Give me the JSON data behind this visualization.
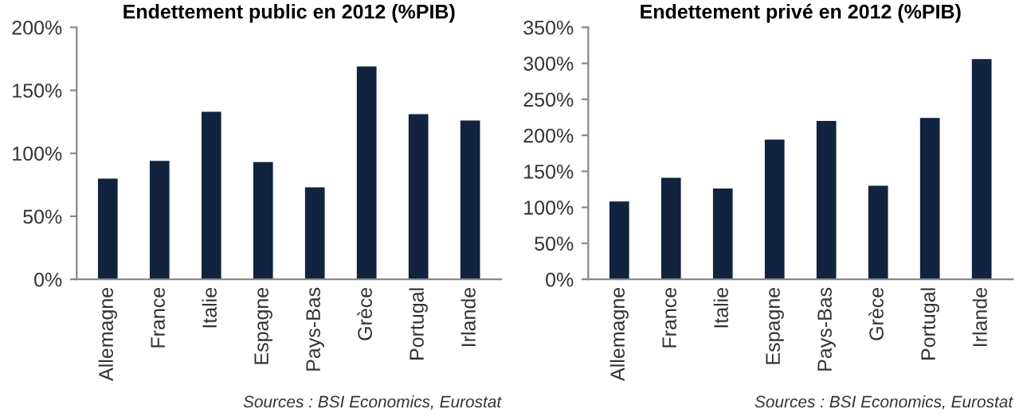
{
  "chart_data": [
    {
      "type": "bar",
      "title": "Endettement public en 2012 (%PIB)",
      "categories": [
        "Allemagne",
        "France",
        "Italie",
        "Espagne",
        "Pays-Bas",
        "Grèce",
        "Portugal",
        "Irlande"
      ],
      "series": [
        {
          "color": "#12233f",
          "values": [
            80,
            94,
            133,
            93,
            73,
            169,
            131,
            126
          ]
        }
      ],
      "ylim": [
        0,
        200
      ],
      "yticks": [
        {
          "value": 0,
          "label": "0%"
        },
        {
          "value": 50,
          "label": "50%"
        },
        {
          "value": 100,
          "label": "100%"
        },
        {
          "value": 150,
          "label": "150%"
        },
        {
          "value": 200,
          "label": "200%"
        }
      ],
      "grid": false,
      "legend": false,
      "annotations": [
        "Sources : BSI Economics, Eurostat"
      ]
    },
    {
      "type": "bar",
      "title": "Endettement privé en 2012 (%PIB)",
      "categories": [
        "Allemagne",
        "France",
        "Italie",
        "Espagne",
        "Pays-Bas",
        "Grèce",
        "Portugal",
        "Irlande"
      ],
      "series": [
        {
          "color": "#12233f",
          "values": [
            108,
            141,
            126,
            194,
            220,
            130,
            224,
            306
          ]
        }
      ],
      "ylim": [
        0,
        350
      ],
      "yticks": [
        {
          "value": 0,
          "label": "0%"
        },
        {
          "value": 50,
          "label": "50%"
        },
        {
          "value": 100,
          "label": "100%"
        },
        {
          "value": 150,
          "label": "150%"
        },
        {
          "value": 200,
          "label": "200%"
        },
        {
          "value": 250,
          "label": "250%"
        },
        {
          "value": 300,
          "label": "300%"
        },
        {
          "value": 350,
          "label": "350%"
        }
      ],
      "grid": false,
      "legend": false,
      "annotations": [
        "Sources : BSI Economics, Eurostat"
      ]
    }
  ]
}
